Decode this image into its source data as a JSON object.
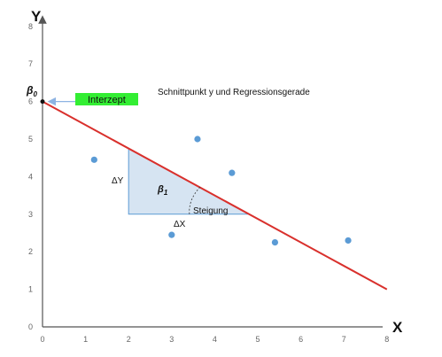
{
  "chart_data": {
    "type": "scatter",
    "title": "",
    "xlabel": "X",
    "ylabel": "Y",
    "xlim": [
      0,
      8
    ],
    "ylim": [
      0,
      8
    ],
    "x_ticks": [
      "0",
      "1",
      "2",
      "3",
      "4",
      "5",
      "6",
      "7",
      "8"
    ],
    "y_ticks": [
      "0",
      "1",
      "2",
      "3",
      "4",
      "5",
      "6",
      "7",
      "8"
    ],
    "grid": false,
    "colors": {
      "points": "#5b9bd5",
      "regression_line": "#d9302c",
      "triangle_fill": "#d6e4f2",
      "triangle_stroke": "#5b9bd5",
      "intercept_label_bg": "#33ee33",
      "axis": "#555555"
    },
    "points": [
      {
        "x": 1.2,
        "y": 4.45
      },
      {
        "x": 3.6,
        "y": 5.0
      },
      {
        "x": 4.4,
        "y": 4.1
      },
      {
        "x": 3.0,
        "y": 2.45
      },
      {
        "x": 5.4,
        "y": 2.25
      },
      {
        "x": 7.1,
        "y": 2.3
      }
    ],
    "regression_line": {
      "x": [
        0,
        8
      ],
      "y": [
        6.0,
        1.0
      ]
    },
    "slope_triangle": {
      "x1": 2.0,
      "x2": 4.8,
      "y_top": 4.75,
      "y_bottom": 3.0
    }
  },
  "annotations": {
    "beta0": "β",
    "beta0_sub": "0",
    "beta1": "β",
    "beta1_sub": "1",
    "intercept_label": "Interzept",
    "intersection_text": "Schnittpunkt y und Regressionsgerade",
    "delta_y": "ΔY",
    "delta_x": "ΔX",
    "slope": "Steigung"
  }
}
